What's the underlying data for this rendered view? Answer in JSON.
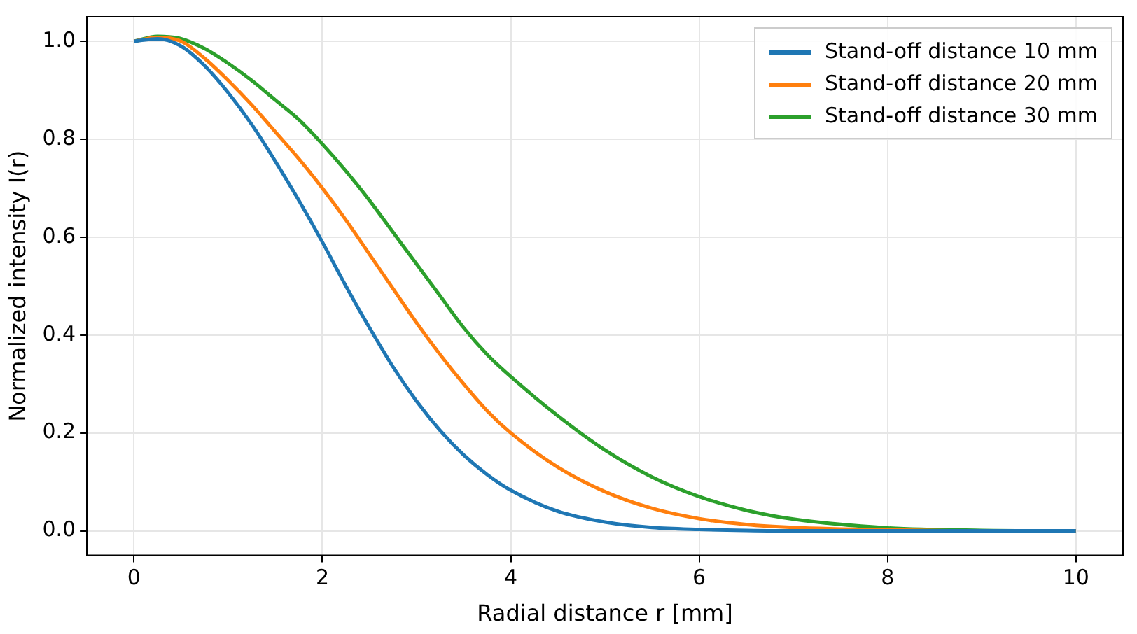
{
  "chart_data": {
    "type": "line",
    "xlabel": "Radial distance r [mm]",
    "ylabel": "Normalized intensity I(r)",
    "x": [
      0,
      0.25,
      0.5,
      0.75,
      1,
      1.25,
      1.5,
      1.75,
      2,
      2.25,
      2.5,
      2.75,
      3,
      3.25,
      3.5,
      3.75,
      4,
      4.5,
      5,
      5.5,
      6,
      6.5,
      7,
      8,
      9,
      10
    ],
    "series": [
      {
        "name": "Stand-off distance 10 mm",
        "color": "#1f77b4",
        "values": [
          1,
          1.005,
          0.99,
          0.95,
          0.895,
          0.83,
          0.755,
          0.675,
          0.59,
          0.5,
          0.415,
          0.335,
          0.265,
          0.205,
          0.155,
          0.115,
          0.083,
          0.04,
          0.018,
          0.007,
          0.003,
          0.001,
          0,
          0,
          0,
          0
        ]
      },
      {
        "name": "Stand-off distance 20 mm",
        "color": "#ff7f0e",
        "values": [
          1,
          1.008,
          1.0,
          0.965,
          0.92,
          0.87,
          0.815,
          0.76,
          0.7,
          0.635,
          0.565,
          0.495,
          0.425,
          0.36,
          0.3,
          0.245,
          0.2,
          0.13,
          0.08,
          0.046,
          0.025,
          0.013,
          0.007,
          0.002,
          0,
          0
        ]
      },
      {
        "name": "Stand-off distance 30 mm",
        "color": "#2ca02c",
        "values": [
          1,
          1.01,
          1.005,
          0.985,
          0.955,
          0.92,
          0.88,
          0.84,
          0.79,
          0.735,
          0.675,
          0.61,
          0.545,
          0.48,
          0.415,
          0.36,
          0.315,
          0.235,
          0.165,
          0.11,
          0.07,
          0.042,
          0.024,
          0.006,
          0.001,
          0
        ]
      }
    ],
    "xlim": [
      -0.5,
      10.5
    ],
    "ylim": [
      -0.05,
      1.05
    ],
    "xticks": [
      0,
      2,
      4,
      6,
      8,
      10
    ],
    "yticks": [
      {
        "value": 0,
        "label": "0.0"
      },
      {
        "value": 0.2,
        "label": "0.2"
      },
      {
        "value": 0.4,
        "label": "0.4"
      },
      {
        "value": 0.6,
        "label": "0.6"
      },
      {
        "value": 0.8,
        "label": "0.8"
      },
      {
        "value": 1,
        "label": "1.0"
      }
    ],
    "grid": true,
    "legend": "top right",
    "marker": "none",
    "line_style": "solid"
  }
}
